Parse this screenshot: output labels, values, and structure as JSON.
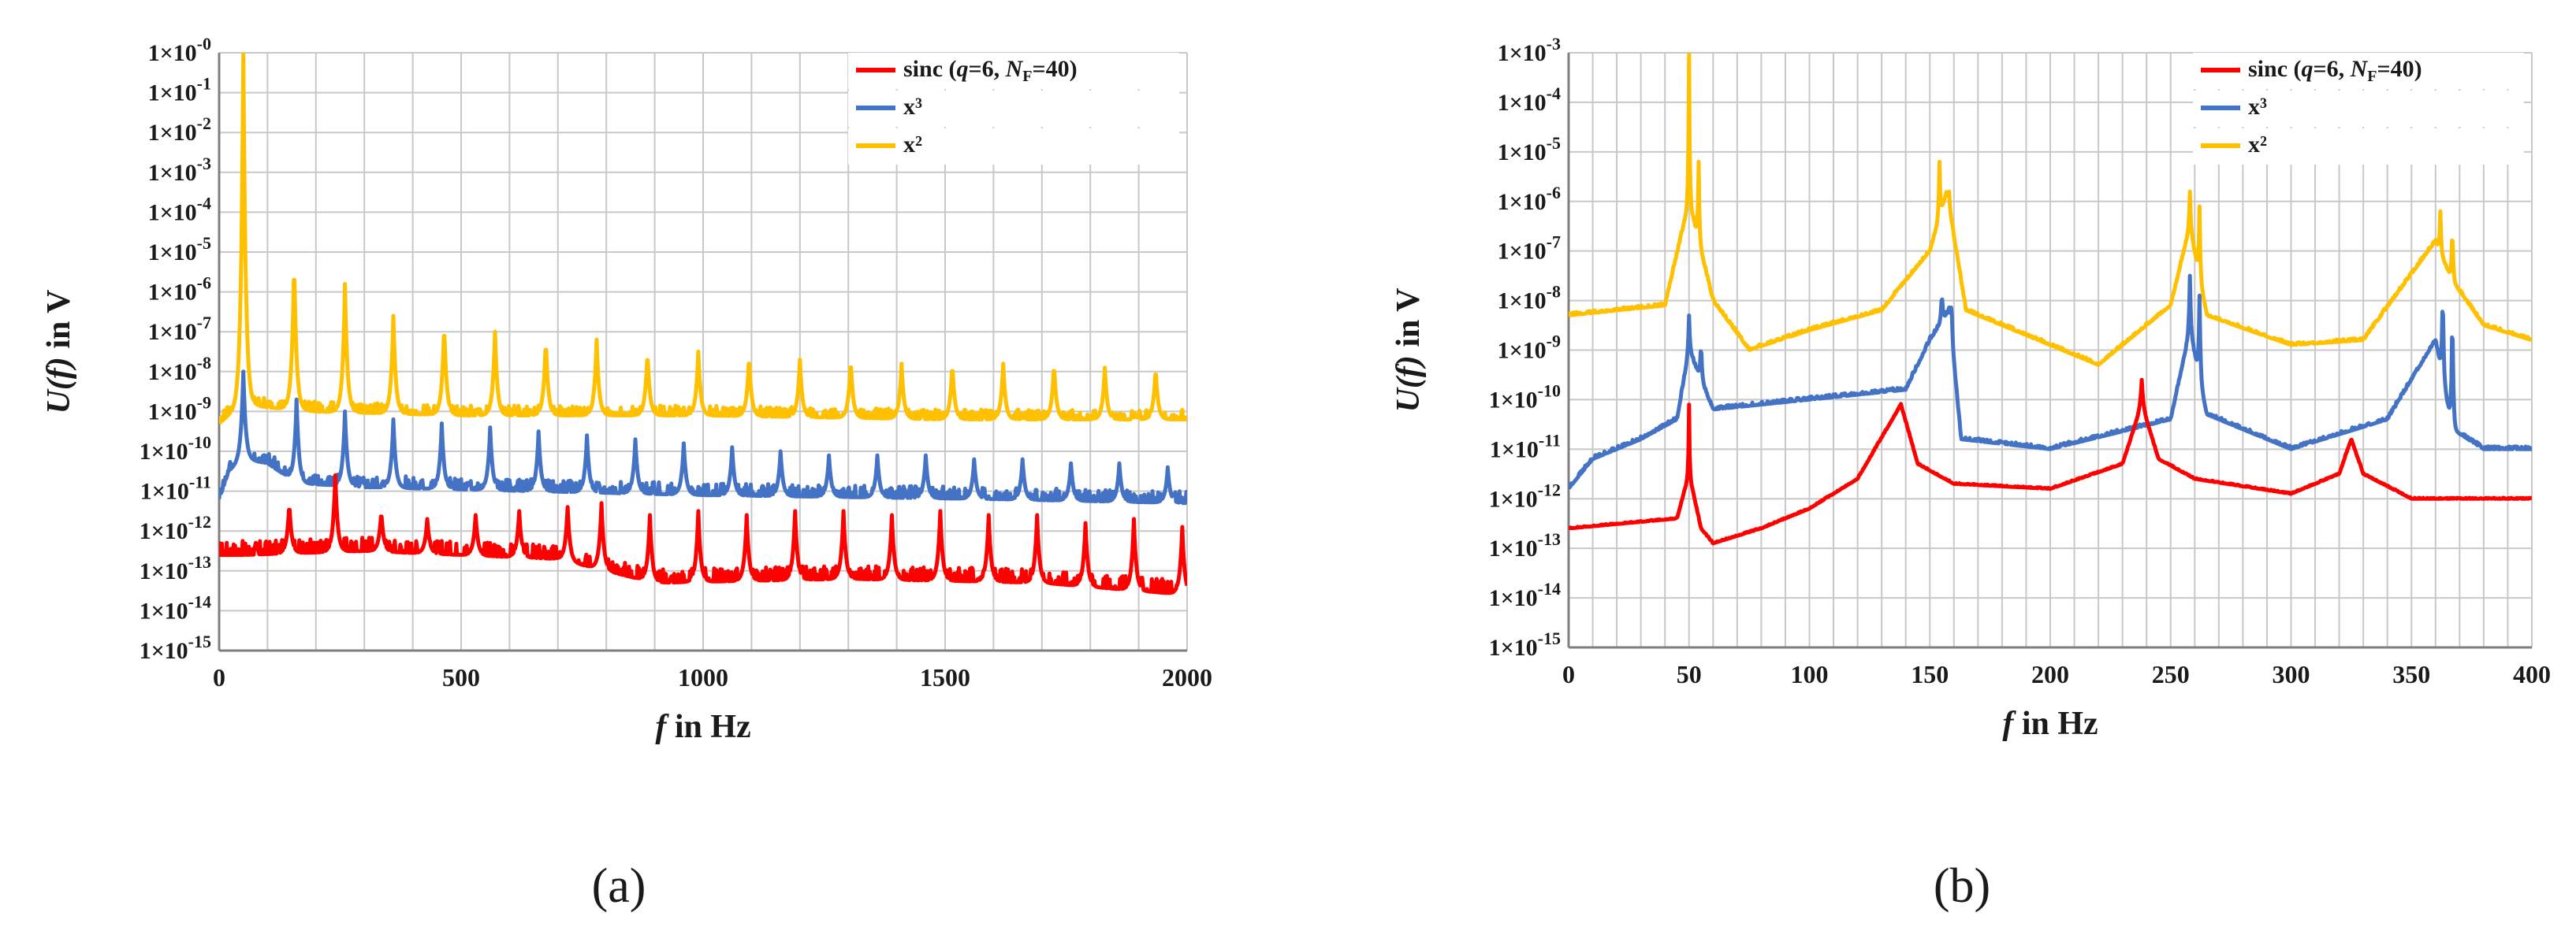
{
  "panels": [
    {
      "label": "(a)"
    },
    {
      "label": "(b)"
    }
  ],
  "chart_data": [
    {
      "type": "line",
      "y_scale": "log",
      "xlabel": "f in Hz",
      "ylabel": "U(f) in V",
      "xlim": [
        0,
        2000
      ],
      "ylim_exp": [
        -15,
        0
      ],
      "x_ticks": [
        0,
        500,
        1000,
        1500,
        2000
      ],
      "y_tick_labels": [
        "1×10^-15",
        "1×10^-14",
        "1×10^-13",
        "1×10^-12",
        "1×10^-11",
        "1×10^-10",
        "1×10^-9",
        "1×10^-8",
        "1×10^-7",
        "1×10^-6",
        "1×10^-5",
        "1×10^-4",
        "1×10^-3",
        "1×10^-2",
        "1×10^-1",
        "1×10^-0"
      ],
      "grid": true,
      "legend_position": "top-right",
      "series": [
        {
          "name": "sinc (q=6, NF=40)",
          "color": "#ff0000",
          "baseline": [
            [
              0,
              -12.6
            ],
            [
              50,
              -12.6
            ],
            [
              300,
              -12.5
            ],
            [
              700,
              -12.7
            ],
            [
              900,
              -13.3
            ],
            [
              1300,
              -13.2
            ],
            [
              1700,
              -13.3
            ],
            [
              2000,
              -13.6
            ]
          ],
          "peaks": [
            [
              50,
              -13.0,
              0.0
            ],
            [
              145,
              -11.3,
              0.0
            ],
            [
              240,
              -10.6,
              0.0
            ],
            [
              335,
              -11.5,
              0.0
            ],
            [
              430,
              -11.7,
              0.0
            ],
            [
              530,
              -11.6,
              0.0
            ],
            [
              620,
              -11.5,
              0.0
            ],
            [
              720,
              -11.4,
              0.0
            ],
            [
              790,
              -11.3,
              0.0
            ],
            [
              890,
              -11.6,
              0.0
            ],
            [
              990,
              -11.5,
              0.0
            ],
            [
              1090,
              -11.6,
              0.0
            ],
            [
              1190,
              -11.5,
              0.0
            ],
            [
              1290,
              -11.5,
              0.0
            ],
            [
              1390,
              -11.6,
              0.0
            ],
            [
              1490,
              -11.5,
              0.0
            ],
            [
              1590,
              -11.6,
              0.0
            ],
            [
              1690,
              -11.6,
              0.0
            ],
            [
              1790,
              -11.8,
              0.0
            ],
            [
              1890,
              -11.7,
              0.0
            ],
            [
              1990,
              -11.9,
              0.0
            ]
          ],
          "noise": 0.35
        },
        {
          "name": "x³",
          "color": "#4472c4",
          "baseline": [
            [
              0,
              -11.2
            ],
            [
              20,
              -10.5
            ],
            [
              50,
              -10.2
            ],
            [
              100,
              -10.3
            ],
            [
              160,
              -10.8
            ],
            [
              300,
              -10.9
            ],
            [
              1000,
              -11.1
            ],
            [
              1600,
              -11.2
            ],
            [
              2000,
              -11.3
            ]
          ],
          "peaks": [
            [
              50,
              -8.0,
              0.0
            ],
            [
              160,
              -8.7,
              0.0
            ],
            [
              260,
              -9.0,
              0.0
            ],
            [
              360,
              -9.2,
              0.0
            ],
            [
              460,
              -9.3,
              0.0
            ],
            [
              560,
              -9.4,
              0.0
            ],
            [
              660,
              -9.5,
              0.0
            ],
            [
              760,
              -9.6,
              0.0
            ],
            [
              860,
              -9.7,
              0.0
            ],
            [
              960,
              -9.8,
              0.0
            ],
            [
              1060,
              -9.9,
              0.0
            ],
            [
              1160,
              -10.0,
              0.0
            ],
            [
              1260,
              -10.1,
              0.0
            ],
            [
              1360,
              -10.1,
              0.0
            ],
            [
              1460,
              -10.1,
              0.0
            ],
            [
              1560,
              -10.2,
              0.0
            ],
            [
              1660,
              -10.2,
              0.0
            ],
            [
              1760,
              -10.3,
              0.0
            ],
            [
              1860,
              -10.3,
              0.0
            ],
            [
              1960,
              -10.4,
              0.0
            ]
          ],
          "noise": 0.3
        },
        {
          "name": "x²",
          "color": "#ffc000",
          "baseline": [
            [
              0,
              -9.3
            ],
            [
              50,
              -8.8
            ],
            [
              100,
              -8.9
            ],
            [
              200,
              -9.0
            ],
            [
              500,
              -9.1
            ],
            [
              1000,
              -9.1
            ],
            [
              1500,
              -9.2
            ],
            [
              2000,
              -9.2
            ]
          ],
          "peaks": [
            [
              50,
              0.0,
              0.0
            ],
            [
              155,
              -5.2,
              0.0
            ],
            [
              260,
              -5.8,
              0.0
            ],
            [
              360,
              -6.6,
              0.0
            ],
            [
              465,
              -6.8,
              0.0
            ],
            [
              570,
              -7.0,
              0.0
            ],
            [
              675,
              -7.2,
              0.0
            ],
            [
              780,
              -7.2,
              0.0
            ],
            [
              885,
              -7.5,
              0.0
            ],
            [
              990,
              -7.5,
              0.0
            ],
            [
              1095,
              -7.6,
              0.0
            ],
            [
              1200,
              -7.7,
              0.0
            ],
            [
              1305,
              -7.7,
              0.0
            ],
            [
              1410,
              -7.8,
              0.0
            ],
            [
              1515,
              -7.8,
              0.0
            ],
            [
              1620,
              -7.8,
              0.0
            ],
            [
              1725,
              -7.8,
              0.0
            ],
            [
              1830,
              -7.9,
              0.0
            ],
            [
              1935,
              -7.9,
              0.0
            ]
          ],
          "noise": 0.25
        }
      ]
    },
    {
      "type": "line",
      "y_scale": "log",
      "xlabel": "f in Hz",
      "ylabel": "U(f) in V",
      "xlim": [
        0,
        400
      ],
      "ylim_exp": [
        -15,
        -3
      ],
      "x_ticks": [
        0,
        50,
        100,
        150,
        200,
        250,
        300,
        350,
        400
      ],
      "y_tick_labels": [
        "1×10^-15",
        "1×10^-14",
        "1×10^-13",
        "1×10^-12",
        "1×10^-11",
        "1×10^-10",
        "1×10^-9",
        "1×10^-8",
        "1×10^-7",
        "1×10^-6",
        "1×10^-5",
        "1×10^-4",
        "1×10^-3"
      ],
      "grid": true,
      "legend_position": "top-right",
      "series": [
        {
          "name": "sinc (q=6, NF=40)",
          "color": "#ff0000",
          "baseline": [
            [
              0,
              -12.6
            ],
            [
              45,
              -12.4
            ],
            [
              50,
              -11.5
            ],
            [
              55,
              -12.6
            ],
            [
              60,
              -12.9
            ],
            [
              80,
              -12.6
            ],
            [
              100,
              -12.2
            ],
            [
              120,
              -11.6
            ],
            [
              138,
              -10.1
            ],
            [
              145,
              -11.3
            ],
            [
              160,
              -11.7
            ],
            [
              200,
              -11.8
            ],
            [
              230,
              -11.3
            ],
            [
              238,
              -10.1
            ],
            [
              245,
              -11.2
            ],
            [
              260,
              -11.6
            ],
            [
              300,
              -11.9
            ],
            [
              320,
              -11.5
            ],
            [
              325,
              -10.8
            ],
            [
              330,
              -11.5
            ],
            [
              350,
              -12.0
            ],
            [
              400,
              -12.0
            ]
          ],
          "peaks": [
            [
              50,
              -10.1,
              0.25
            ],
            [
              138,
              -10.1,
              0.6
            ],
            [
              238,
              -9.6,
              0.6
            ],
            [
              325,
              -10.8,
              0.5
            ]
          ],
          "noise": 0.02
        },
        {
          "name": "x³",
          "color": "#4472c4",
          "baseline": [
            [
              0,
              -11.8
            ],
            [
              10,
              -11.2
            ],
            [
              30,
              -10.8
            ],
            [
              45,
              -10.4
            ],
            [
              50,
              -9.0
            ],
            [
              60,
              -10.2
            ],
            [
              100,
              -10.0
            ],
            [
              140,
              -9.8
            ],
            [
              150,
              -8.8
            ],
            [
              158,
              -8.2
            ],
            [
              163,
              -10.8
            ],
            [
              200,
              -11.0
            ],
            [
              250,
              -10.4
            ],
            [
              258,
              -8.6
            ],
            [
              265,
              -10.3
            ],
            [
              300,
              -11.0
            ],
            [
              340,
              -10.4
            ],
            [
              360,
              -8.8
            ],
            [
              367,
              -10.6
            ],
            [
              380,
              -11.0
            ],
            [
              400,
              -11.0
            ]
          ],
          "peaks": [
            [
              50,
              -8.3,
              0.4
            ],
            [
              55,
              -8.8,
              0.4
            ],
            [
              155,
              -7.8,
              0.4
            ],
            [
              159,
              -8.0,
              0.4
            ],
            [
              258,
              -7.5,
              0.4
            ],
            [
              262,
              -7.9,
              0.4
            ],
            [
              363,
              -7.7,
              0.4
            ],
            [
              367,
              -8.0,
              0.4
            ]
          ],
          "noise": 0.06
        },
        {
          "name": "x²",
          "color": "#ffc000",
          "baseline": [
            [
              0,
              -8.3
            ],
            [
              40,
              -8.1
            ],
            [
              50,
              -6.0
            ],
            [
              60,
              -8.0
            ],
            [
              75,
              -9.0
            ],
            [
              100,
              -8.6
            ],
            [
              130,
              -8.2
            ],
            [
              150,
              -7.0
            ],
            [
              157,
              -5.8
            ],
            [
              165,
              -8.2
            ],
            [
              200,
              -8.9
            ],
            [
              220,
              -9.3
            ],
            [
              250,
              -8.1
            ],
            [
              258,
              -6.5
            ],
            [
              265,
              -8.3
            ],
            [
              300,
              -8.9
            ],
            [
              330,
              -8.8
            ],
            [
              360,
              -6.8
            ],
            [
              367,
              -7.6
            ],
            [
              380,
              -8.5
            ],
            [
              400,
              -8.8
            ]
          ],
          "peaks": [
            [
              50,
              -3.0,
              0.3
            ],
            [
              54,
              -5.2,
              0.35
            ],
            [
              154,
              -5.2,
              0.35
            ],
            [
              158,
              -5.8,
              0.35
            ],
            [
              258,
              -5.8,
              0.35
            ],
            [
              262,
              -6.1,
              0.35
            ],
            [
              362,
              -6.2,
              0.35
            ],
            [
              367,
              -6.4,
              0.35
            ]
          ],
          "noise": 0.05
        }
      ]
    }
  ]
}
